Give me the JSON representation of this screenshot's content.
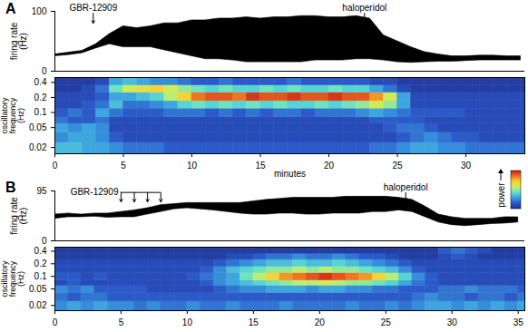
{
  "chart_data": [
    {
      "type": "band",
      "panel": "A",
      "ylabel": "firing rate (Hz)",
      "color": "#000000",
      "x": [
        0,
        1,
        2,
        3,
        4,
        5,
        6,
        7,
        8,
        9,
        10,
        11,
        12,
        13,
        14,
        15,
        16,
        17,
        18,
        19,
        20,
        21,
        22,
        23,
        24,
        25,
        26,
        27,
        28,
        29,
        30,
        31,
        32,
        33,
        34
      ],
      "low": [
        25,
        27,
        30,
        38,
        45,
        40,
        40,
        40,
        35,
        30,
        25,
        20,
        20,
        18,
        15,
        15,
        15,
        15,
        15,
        18,
        18,
        18,
        20,
        20,
        18,
        15,
        14,
        15,
        16,
        16,
        17,
        18,
        18,
        18,
        18
      ],
      "high": [
        28,
        31,
        34,
        45,
        62,
        75,
        72,
        75,
        80,
        80,
        85,
        85,
        88,
        88,
        90,
        88,
        90,
        90,
        92,
        92,
        90,
        90,
        92,
        88,
        60,
        50,
        40,
        32,
        28,
        25,
        25,
        26,
        26,
        25,
        25
      ],
      "xlim": [
        0,
        34.3
      ],
      "ylim": [
        0,
        100
      ],
      "yticks": [
        0,
        100
      ],
      "annotations": [
        {
          "text": "GBR-12909",
          "x": [
            2.8
          ]
        },
        {
          "text": "haloperidol",
          "x": [
            22.6
          ]
        }
      ]
    },
    {
      "type": "heatmap",
      "xlabel": "minutes",
      "ylabel": "oscillatory frequency (Hz)",
      "log": "y",
      "xlim": [
        0,
        34.3
      ],
      "xticks": [
        0,
        5,
        10,
        15,
        20,
        25,
        30
      ],
      "ylim": [
        0.015,
        0.5
      ],
      "yticks": [
        0.02,
        0.05,
        0.1,
        0.2,
        0.4
      ],
      "time_bins": [
        0,
        1,
        2,
        3,
        4,
        5,
        6,
        7,
        8,
        9,
        10,
        11,
        12,
        13,
        14,
        15,
        16,
        17,
        18,
        19,
        20,
        21,
        22,
        23,
        24,
        25,
        26,
        27,
        28,
        29,
        30,
        31,
        32,
        33,
        34,
        35
      ],
      "freq_bins": [
        0.015,
        0.025,
        0.04,
        0.06,
        0.08,
        0.12,
        0.17,
        0.25,
        0.35,
        0.5
      ],
      "power": [
        [
          0.35,
          0.35,
          0.3,
          0.3,
          0.25,
          0.2,
          0.2,
          0.2,
          0.15,
          0.15,
          0.15,
          0.15,
          0.15,
          0.15,
          0.15,
          0.15,
          0.15,
          0.15,
          0.15,
          0.15,
          0.15,
          0.15,
          0.15,
          0.2,
          0.2,
          0.25,
          0.3,
          0.3,
          0.25,
          0.25,
          0.2,
          0.2,
          0.2,
          0.2,
          0.2
        ],
        [
          0.25,
          0.3,
          0.3,
          0.25,
          0.15,
          0.1,
          0.1,
          0.1,
          0.1,
          0.1,
          0.1,
          0.1,
          0.1,
          0.1,
          0.1,
          0.1,
          0.1,
          0.1,
          0.1,
          0.1,
          0.1,
          0.1,
          0.1,
          0.1,
          0.1,
          0.15,
          0.2,
          0.25,
          0.2,
          0.15,
          0.15,
          0.1,
          0.1,
          0.1,
          0.1
        ],
        [
          0.3,
          0.25,
          0.3,
          0.25,
          0.1,
          0.1,
          0.1,
          0.1,
          0.1,
          0.1,
          0.1,
          0.1,
          0.1,
          0.1,
          0.1,
          0.1,
          0.1,
          0.1,
          0.1,
          0.1,
          0.1,
          0.1,
          0.1,
          0.1,
          0.15,
          0.2,
          0.2,
          0.15,
          0.1,
          0.1,
          0.1,
          0.1,
          0.1,
          0.1,
          0.1
        ],
        [
          0.2,
          0.15,
          0.15,
          0.2,
          0.1,
          0.1,
          0.1,
          0.1,
          0.1,
          0.1,
          0.1,
          0.1,
          0.1,
          0.1,
          0.1,
          0.1,
          0.1,
          0.1,
          0.1,
          0.1,
          0.1,
          0.1,
          0.1,
          0.15,
          0.15,
          0.15,
          0.15,
          0.1,
          0.1,
          0.1,
          0.1,
          0.1,
          0.1,
          0.1,
          0.1
        ],
        [
          0.15,
          0.2,
          0.15,
          0.3,
          0.2,
          0.15,
          0.15,
          0.15,
          0.2,
          0.2,
          0.2,
          0.15,
          0.2,
          0.15,
          0.2,
          0.15,
          0.2,
          0.2,
          0.15,
          0.2,
          0.2,
          0.2,
          0.25,
          0.3,
          0.25,
          0.2,
          0.15,
          0.15,
          0.15,
          0.15,
          0.1,
          0.1,
          0.1,
          0.1,
          0.1
        ],
        [
          0.1,
          0.1,
          0.15,
          0.2,
          0.35,
          0.2,
          0.2,
          0.25,
          0.3,
          0.4,
          0.45,
          0.4,
          0.45,
          0.4,
          0.45,
          0.4,
          0.45,
          0.4,
          0.4,
          0.45,
          0.4,
          0.45,
          0.5,
          0.6,
          0.5,
          0.3,
          0.1,
          0.1,
          0.1,
          0.1,
          0.1,
          0.1,
          0.1,
          0.1,
          0.1
        ],
        [
          0.1,
          0.1,
          0.1,
          0.15,
          0.3,
          0.3,
          0.35,
          0.4,
          0.55,
          0.7,
          0.85,
          0.9,
          0.9,
          0.85,
          0.95,
          0.9,
          0.9,
          0.95,
          0.9,
          0.9,
          0.95,
          0.9,
          0.9,
          0.8,
          0.6,
          0.3,
          0.1,
          0.1,
          0.1,
          0.1,
          0.1,
          0.1,
          0.1,
          0.1,
          0.1
        ],
        [
          0.05,
          0.05,
          0.1,
          0.2,
          0.45,
          0.6,
          0.65,
          0.7,
          0.6,
          0.5,
          0.45,
          0.4,
          0.45,
          0.4,
          0.4,
          0.45,
          0.4,
          0.45,
          0.4,
          0.4,
          0.45,
          0.4,
          0.4,
          0.3,
          0.2,
          0.1,
          0.05,
          0.05,
          0.05,
          0.05,
          0.05,
          0.05,
          0.05,
          0.05,
          0.05
        ],
        [
          0.05,
          0.05,
          0.05,
          0.1,
          0.3,
          0.35,
          0.3,
          0.25,
          0.25,
          0.2,
          0.15,
          0.15,
          0.2,
          0.15,
          0.15,
          0.15,
          0.15,
          0.2,
          0.15,
          0.15,
          0.15,
          0.15,
          0.15,
          0.1,
          0.1,
          0.05,
          0.05,
          0.05,
          0.05,
          0.05,
          0.05,
          0.05,
          0.05,
          0.05,
          0.05
        ]
      ]
    },
    {
      "type": "band",
      "panel": "B",
      "ylabel": "firing rate (Hz)",
      "color": "#000000",
      "x": [
        0,
        1,
        2,
        3,
        4,
        5,
        6,
        7,
        8,
        9,
        10,
        11,
        12,
        13,
        14,
        15,
        16,
        17,
        18,
        19,
        20,
        21,
        22,
        23,
        24,
        25,
        26,
        27,
        28,
        29,
        30,
        31,
        32,
        33,
        34,
        35
      ],
      "low": [
        42,
        45,
        45,
        46,
        44,
        45,
        45,
        50,
        55,
        60,
        62,
        60,
        58,
        55,
        52,
        50,
        50,
        52,
        52,
        50,
        50,
        52,
        52,
        52,
        55,
        55,
        58,
        55,
        45,
        35,
        30,
        28,
        30,
        32,
        33,
        35
      ],
      "high": [
        50,
        52,
        50,
        52,
        52,
        55,
        58,
        62,
        68,
        70,
        72,
        72,
        72,
        72,
        72,
        75,
        78,
        80,
        82,
        82,
        82,
        82,
        84,
        84,
        84,
        84,
        82,
        78,
        65,
        50,
        45,
        42,
        42,
        42,
        45,
        45
      ],
      "xlim": [
        0,
        35.5
      ],
      "ylim": [
        0,
        95
      ],
      "yticks": [
        0,
        95
      ],
      "annotations": [
        {
          "text": "GBR-12909",
          "x": [
            5,
            6,
            7,
            8
          ]
        },
        {
          "text": "haloperidol",
          "x": [
            26.5
          ]
        }
      ]
    },
    {
      "type": "heatmap",
      "ylabel": "oscillatory frequency (Hz)",
      "log": "y",
      "xlim": [
        0,
        35.5
      ],
      "xticks": [
        0,
        5,
        10,
        15,
        20,
        25,
        30,
        35
      ],
      "ylim": [
        0.015,
        0.5
      ],
      "yticks": [
        0.02,
        0.05,
        0.1,
        0.2,
        0.4
      ],
      "time_bins": [
        0,
        1,
        2,
        3,
        4,
        5,
        6,
        7,
        8,
        9,
        10,
        11,
        12,
        13,
        14,
        15,
        16,
        17,
        18,
        19,
        20,
        21,
        22,
        23,
        24,
        25,
        26,
        27,
        28,
        29,
        30,
        31,
        32,
        33,
        34,
        35,
        36
      ],
      "freq_bins": [
        0.015,
        0.025,
        0.04,
        0.06,
        0.08,
        0.12,
        0.17,
        0.25,
        0.35,
        0.5
      ],
      "power": [
        [
          0.25,
          0.3,
          0.25,
          0.3,
          0.25,
          0.25,
          0.2,
          0.25,
          0.2,
          0.2,
          0.25,
          0.2,
          0.2,
          0.25,
          0.2,
          0.2,
          0.2,
          0.25,
          0.2,
          0.2,
          0.2,
          0.2,
          0.25,
          0.2,
          0.2,
          0.25,
          0.2,
          0.25,
          0.3,
          0.3,
          0.25,
          0.3,
          0.25,
          0.3,
          0.25,
          0.3
        ],
        [
          0.2,
          0.15,
          0.2,
          0.2,
          0.15,
          0.15,
          0.15,
          0.15,
          0.15,
          0.15,
          0.15,
          0.15,
          0.15,
          0.15,
          0.15,
          0.15,
          0.15,
          0.15,
          0.15,
          0.15,
          0.15,
          0.15,
          0.15,
          0.15,
          0.15,
          0.15,
          0.15,
          0.2,
          0.25,
          0.2,
          0.2,
          0.15,
          0.2,
          0.2,
          0.15,
          0.2
        ],
        [
          0.25,
          0.2,
          0.25,
          0.15,
          0.15,
          0.15,
          0.15,
          0.1,
          0.1,
          0.1,
          0.1,
          0.1,
          0.15,
          0.2,
          0.25,
          0.25,
          0.3,
          0.3,
          0.3,
          0.25,
          0.3,
          0.3,
          0.25,
          0.25,
          0.2,
          0.2,
          0.15,
          0.15,
          0.15,
          0.2,
          0.2,
          0.25,
          0.2,
          0.2,
          0.2,
          0.15
        ],
        [
          0.1,
          0.15,
          0.1,
          0.1,
          0.1,
          0.1,
          0.1,
          0.1,
          0.1,
          0.1,
          0.1,
          0.15,
          0.25,
          0.3,
          0.35,
          0.4,
          0.45,
          0.5,
          0.55,
          0.55,
          0.6,
          0.55,
          0.5,
          0.5,
          0.45,
          0.4,
          0.3,
          0.2,
          0.15,
          0.1,
          0.1,
          0.1,
          0.1,
          0.1,
          0.1,
          0.1
        ],
        [
          0.15,
          0.15,
          0.1,
          0.15,
          0.1,
          0.1,
          0.1,
          0.1,
          0.1,
          0.1,
          0.15,
          0.2,
          0.25,
          0.3,
          0.45,
          0.55,
          0.7,
          0.8,
          0.85,
          0.9,
          0.95,
          0.9,
          0.85,
          0.8,
          0.7,
          0.55,
          0.4,
          0.25,
          0.15,
          0.1,
          0.1,
          0.1,
          0.1,
          0.1,
          0.1,
          0.1
        ],
        [
          0.1,
          0.1,
          0.1,
          0.1,
          0.1,
          0.1,
          0.1,
          0.1,
          0.1,
          0.1,
          0.1,
          0.15,
          0.25,
          0.35,
          0.4,
          0.45,
          0.5,
          0.5,
          0.55,
          0.5,
          0.55,
          0.5,
          0.5,
          0.45,
          0.4,
          0.35,
          0.25,
          0.15,
          0.1,
          0.1,
          0.1,
          0.1,
          0.1,
          0.1,
          0.1,
          0.1
        ],
        [
          0.1,
          0.1,
          0.1,
          0.1,
          0.1,
          0.1,
          0.1,
          0.1,
          0.1,
          0.1,
          0.1,
          0.1,
          0.15,
          0.2,
          0.25,
          0.3,
          0.35,
          0.35,
          0.4,
          0.35,
          0.35,
          0.4,
          0.35,
          0.3,
          0.25,
          0.2,
          0.15,
          0.1,
          0.1,
          0.1,
          0.1,
          0.1,
          0.1,
          0.1,
          0.1,
          0.1
        ],
        [
          0.05,
          0.05,
          0.05,
          0.05,
          0.05,
          0.05,
          0.05,
          0.05,
          0.05,
          0.05,
          0.05,
          0.05,
          0.05,
          0.1,
          0.1,
          0.15,
          0.2,
          0.2,
          0.25,
          0.2,
          0.2,
          0.25,
          0.2,
          0.15,
          0.15,
          0.1,
          0.05,
          0.05,
          0.05,
          0.1,
          0.15,
          0.1,
          0.05,
          0.05,
          0.05,
          0.05
        ],
        [
          0.05,
          0.05,
          0.05,
          0.05,
          0.05,
          0.05,
          0.05,
          0.05,
          0.05,
          0.05,
          0.05,
          0.05,
          0.05,
          0.05,
          0.05,
          0.05,
          0.05,
          0.05,
          0.05,
          0.05,
          0.05,
          0.05,
          0.05,
          0.05,
          0.05,
          0.05,
          0.05,
          0.05,
          0.05,
          0.15,
          0.2,
          0.15,
          0.1,
          0.05,
          0.05,
          0.05
        ]
      ],
      "color_bar": {
        "label": "power",
        "range": [
          0,
          1
        ],
        "colors": [
          "#1f2f8f",
          "#2b57c8",
          "#3a9fe0",
          "#5fe0d0",
          "#c8f060",
          "#f8d030",
          "#f07020",
          "#c81818"
        ]
      }
    }
  ]
}
